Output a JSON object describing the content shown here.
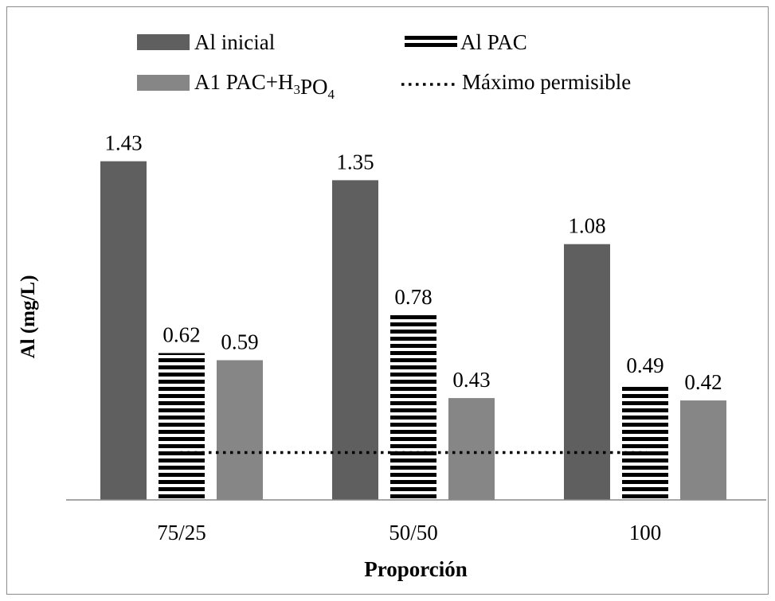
{
  "chart_data": {
    "type": "bar",
    "categories": [
      "75/25",
      "50/50",
      "100"
    ],
    "series": [
      {
        "name": "Al inicial",
        "values": [
          1.43,
          1.35,
          1.08
        ],
        "color": "#5f5f5f",
        "pattern": "solid"
      },
      {
        "name": "Al PAC",
        "values": [
          0.62,
          0.78,
          0.49
        ],
        "color": "#000000",
        "pattern": "horizontal-stripes"
      },
      {
        "name": "A1 PAC+H₃PO₄",
        "values": [
          0.59,
          0.43,
          0.42
        ],
        "color": "#868686",
        "pattern": "solid"
      }
    ],
    "reference_line": {
      "name": "Máximo permisible",
      "value": 0.2,
      "style": "dotted"
    },
    "data_labels": [
      [
        "1.43",
        "1.35",
        "1.08"
      ],
      [
        "0.62",
        "0.78",
        "0.49"
      ],
      [
        "0.59",
        "0.43",
        "0.42"
      ]
    ],
    "xlabel": "Proporción",
    "ylabel": "Al (mg/L)",
    "ylim": [
      0,
      1.6
    ],
    "grid": false,
    "legend_position": "top"
  }
}
